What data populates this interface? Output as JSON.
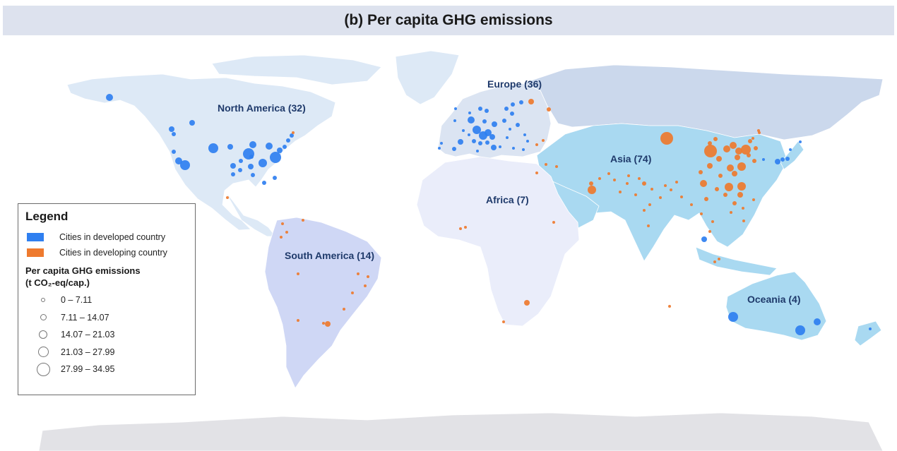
{
  "title": "(b) Per capita GHG emissions",
  "colors": {
    "developed": "#2f7ff0",
    "developing": "#ee7a2e",
    "north_america_land": "#dde9f6",
    "europe_land": "#dbe4f2",
    "russia_land": "#cbd8ec",
    "asia_land": "#a9d9f1",
    "africa_land": "#eaedfa",
    "south_america_land": "#cfd7f5",
    "oceania_land": "#a9d9f1",
    "antarctica_land": "#e2e2e6"
  },
  "regions": [
    {
      "id": "north-america",
      "label": "North America (32)"
    },
    {
      "id": "europe",
      "label": "Europe (36)"
    },
    {
      "id": "asia",
      "label": "Asia (74)"
    },
    {
      "id": "africa",
      "label": "Africa (7)"
    },
    {
      "id": "south-america",
      "label": "South America (14)"
    },
    {
      "id": "oceania",
      "label": "Oceania (4)"
    }
  ],
  "legend": {
    "title": "Legend",
    "categories": [
      {
        "label": "Cities in developed country",
        "color": "#2f7ff0"
      },
      {
        "label": "Cities in developing country",
        "color": "#ee7a2e"
      }
    ],
    "size_title_line1": "Per capita GHG emissions",
    "size_title_line2": "(t CO₂-eq/cap.)",
    "size_classes": [
      "0 – 7.11",
      "7.11 – 14.07",
      "14.07 – 21.03",
      "21.03 – 27.99",
      "27.99 – 34.95"
    ]
  }
}
